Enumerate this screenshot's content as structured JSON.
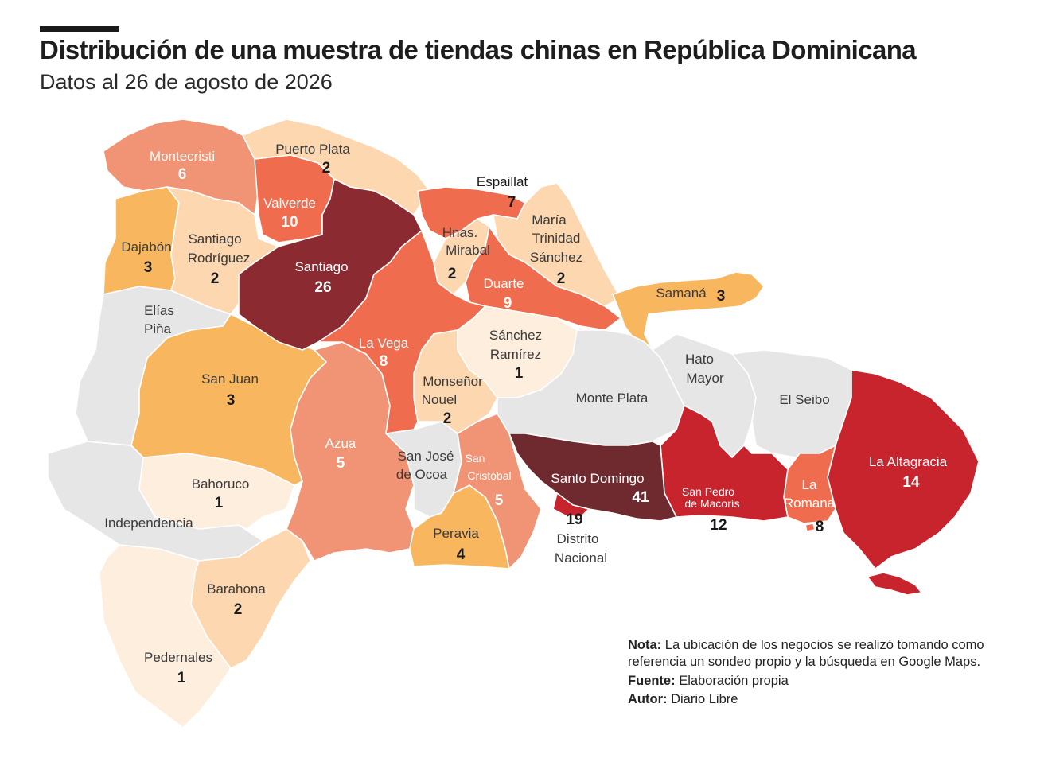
{
  "header": {
    "title": "Distribución de una muestra de tiendas chinas en República Dominicana",
    "subtitle": "Datos al 26 de agosto de 2026"
  },
  "colors": {
    "no_data": "#e6e6e6",
    "scale": [
      "#fdeedd",
      "#fcd7b0",
      "#f8b65e",
      "#f19375",
      "#ef6c4f",
      "#c8242d",
      "#8b2a30",
      "#6e2a2e"
    ]
  },
  "provinces": {
    "montecristi": {
      "name": "Montecristi",
      "count": "6"
    },
    "puerto_plata": {
      "name": "Puerto Plata",
      "count": "2"
    },
    "espaillat": {
      "name": "Espaillat",
      "count": "7"
    },
    "valverde": {
      "name": "Valverde",
      "count": "10"
    },
    "dajabon": {
      "name": "Dajabón",
      "count": "3"
    },
    "santiago_rodriguez": {
      "name_1": "Santiago",
      "name_2": "Rodríguez",
      "count": "2"
    },
    "santiago": {
      "name": "Santiago",
      "count": "26"
    },
    "hnas_mirabal": {
      "name_1": "Hnas.",
      "name_2": "Mirabal",
      "count": "2"
    },
    "maria_trinidad_sanchez": {
      "name_1": "María",
      "name_2": "Trinidad",
      "name_3": "Sánchez",
      "count": "2"
    },
    "duarte": {
      "name": "Duarte",
      "count": "9"
    },
    "samana": {
      "name": "Samaná",
      "count": "3"
    },
    "elias_pina": {
      "name_1": "Elías",
      "name_2": "Piña"
    },
    "la_vega": {
      "name": "La Vega",
      "count": "8"
    },
    "sanchez_ramirez": {
      "name_1": "Sánchez",
      "name_2": "Ramírez",
      "count": "1"
    },
    "hato_mayor": {
      "name_1": "Hato",
      "name_2": "Mayor"
    },
    "san_juan": {
      "name": "San Juan",
      "count": "3"
    },
    "monsenor_nouel": {
      "name_1": "Monseñor",
      "name_2": "Nouel",
      "count": "2"
    },
    "monte_plata": {
      "name": "Monte Plata"
    },
    "el_seibo": {
      "name": "El Seibo"
    },
    "azua": {
      "name": "Azua",
      "count": "5"
    },
    "san_jose_de_ocoa": {
      "name_1": "San José",
      "name_2": "de Ocoa"
    },
    "san_cristobal": {
      "name_1": "San",
      "name_2": "Cristóbal",
      "count": "5"
    },
    "santo_domingo": {
      "name": "Santo Domingo",
      "count": "41"
    },
    "san_pedro_de_macoris": {
      "name_1": "San Pedro",
      "name_2": "de Macorís",
      "count": "12"
    },
    "la_romana": {
      "name_1": "La",
      "name_2": "Romana",
      "count": "8"
    },
    "la_altagracia": {
      "name": "La Altagracia",
      "count": "14"
    },
    "bahoruco": {
      "name": "Bahoruco",
      "count": "1"
    },
    "independencia": {
      "name": "Independencia"
    },
    "peravia": {
      "name": "Peravia",
      "count": "4"
    },
    "distrito_nacional": {
      "name_1": "Distrito",
      "name_2": "Nacional",
      "count": "19"
    },
    "barahona": {
      "name": "Barahona",
      "count": "2"
    },
    "pedernales": {
      "name": "Pedernales",
      "count": "1"
    }
  },
  "notes": {
    "nota_label": "Nota:",
    "nota_text": "La ubicación de los negocios se realizó tomando como referencia un sondeo propio y la búsqueda en Google Maps.",
    "fuente_label": "Fuente:",
    "fuente_text": "Elaboración propia",
    "autor_label": "Autor:",
    "autor_text": "Diario Libre"
  }
}
